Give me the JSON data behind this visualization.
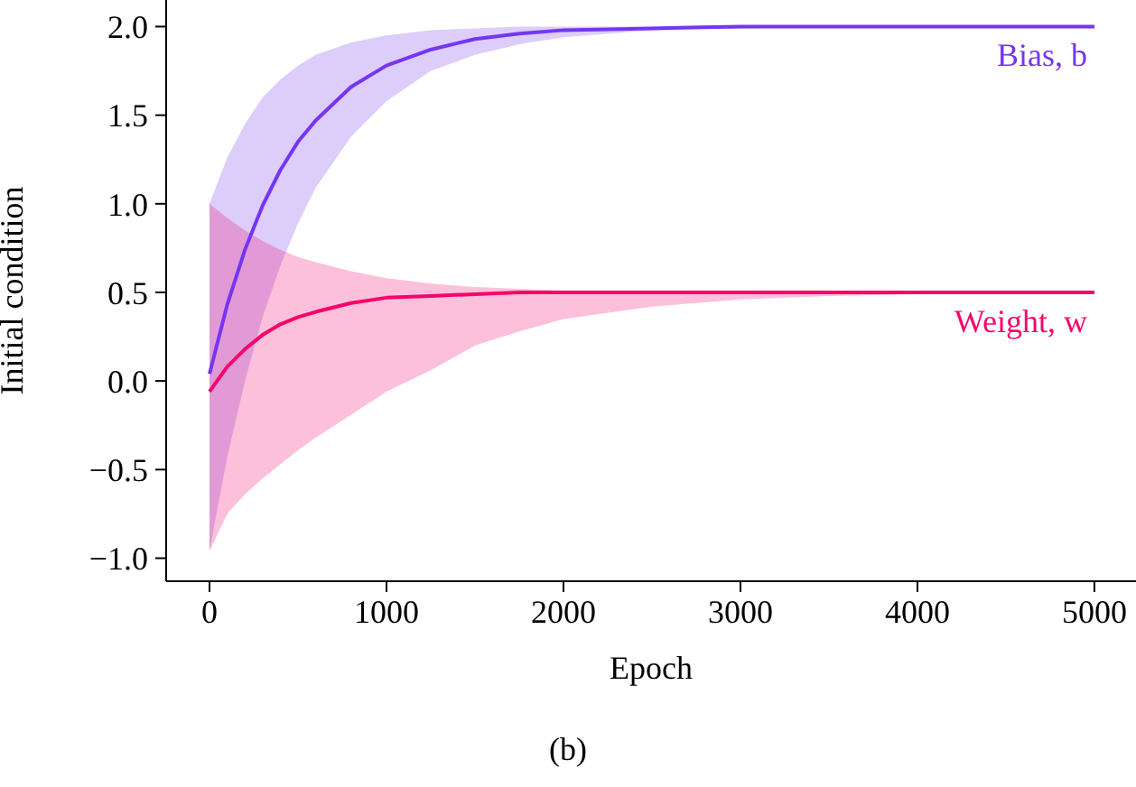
{
  "chart_data": {
    "type": "line",
    "xlabel": "Epoch",
    "ylabel": "Initial condition",
    "annotations": [
      "(b)"
    ],
    "x": [
      0,
      100,
      200,
      300,
      400,
      500,
      600,
      800,
      1000,
      1250,
      1500,
      1750,
      2000,
      2500,
      3000,
      3500,
      4000,
      5000
    ],
    "series": [
      {
        "name": "Bias, b",
        "color": "#7436f0",
        "values": [
          0.04,
          0.43,
          0.74,
          0.99,
          1.19,
          1.35,
          1.47,
          1.66,
          1.78,
          1.87,
          1.93,
          1.96,
          1.98,
          1.99,
          2.0,
          2.0,
          2.0,
          2.0
        ],
        "lower": [
          -0.96,
          -0.43,
          0.0,
          0.36,
          0.65,
          0.89,
          1.09,
          1.38,
          1.58,
          1.75,
          1.84,
          1.9,
          1.94,
          1.98,
          1.99,
          2.0,
          2.0,
          2.0
        ],
        "upper": [
          1.0,
          1.26,
          1.45,
          1.6,
          1.7,
          1.78,
          1.84,
          1.91,
          1.95,
          1.98,
          1.99,
          2.0,
          2.0,
          2.0,
          2.0,
          2.0,
          2.0,
          2.0
        ]
      },
      {
        "name": "Weight, w",
        "color": "#f5046a",
        "values": [
          -0.06,
          0.08,
          0.18,
          0.26,
          0.32,
          0.36,
          0.39,
          0.44,
          0.47,
          0.48,
          0.49,
          0.5,
          0.5,
          0.5,
          0.5,
          0.5,
          0.5,
          0.5
        ],
        "lower": [
          -0.96,
          -0.75,
          -0.64,
          -0.55,
          -0.47,
          -0.39,
          -0.32,
          -0.19,
          -0.06,
          0.06,
          0.2,
          0.28,
          0.35,
          0.42,
          0.46,
          0.48,
          0.49,
          0.5
        ],
        "upper": [
          1.0,
          0.92,
          0.85,
          0.79,
          0.74,
          0.7,
          0.67,
          0.62,
          0.58,
          0.55,
          0.53,
          0.52,
          0.51,
          0.5,
          0.5,
          0.5,
          0.5,
          0.5
        ]
      }
    ],
    "xlim": [
      -245,
      5235
    ],
    "xticks": [
      0,
      1000,
      2000,
      3000,
      4000,
      5000
    ],
    "ylim": [
      -1.13,
      2.15
    ],
    "yticks": [
      {
        "value": -1.0,
        "label": "−1.0"
      },
      {
        "value": -0.5,
        "label": "−0.5"
      },
      {
        "value": 0.0,
        "label": "0.0"
      },
      {
        "value": 0.5,
        "label": "0.5"
      },
      {
        "value": 1.0,
        "label": "1.0"
      },
      {
        "value": 1.5,
        "label": "1.5"
      },
      {
        "value": 2.0,
        "label": "2.0"
      }
    ],
    "grid": false,
    "legend": false,
    "marker": "none",
    "line_style": "solid"
  }
}
